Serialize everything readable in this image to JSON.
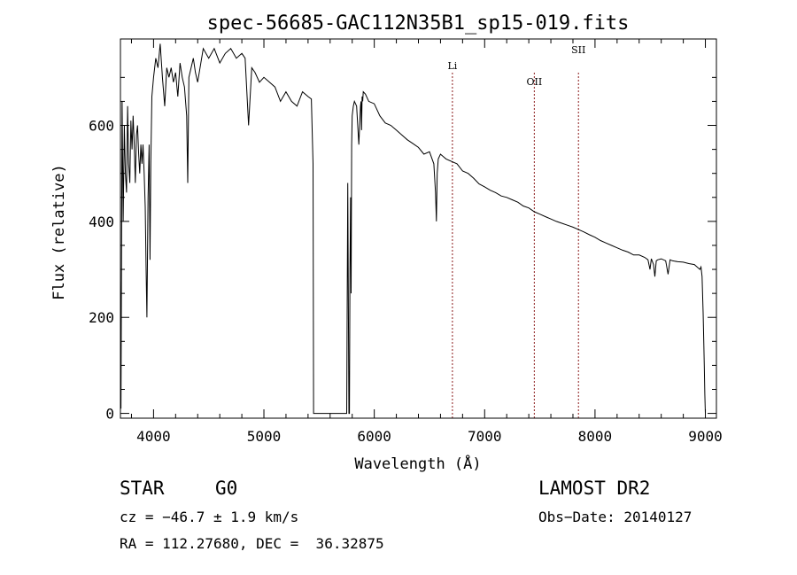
{
  "chart_data": {
    "type": "line",
    "title": "spec-56685-GAC112N35B1_sp15-019.fits",
    "xlabel": "Wavelength (Å)",
    "ylabel": "Flux (relative)",
    "xlim": [
      3700,
      9100
    ],
    "ylim": [
      -10,
      780
    ],
    "x_ticks": [
      4000,
      5000,
      6000,
      7000,
      8000,
      9000
    ],
    "x_tick_labels": [
      "4000",
      "5000",
      "6000",
      "7000",
      "8000",
      "9000"
    ],
    "y_ticks": [
      0,
      200,
      400,
      600
    ],
    "y_tick_labels": [
      "0",
      "200",
      "400",
      "600"
    ],
    "grid": false,
    "line_color": "#000000",
    "marker_color": "#8b1a1a",
    "lines": [
      {
        "label": "Li",
        "x": 6708
      },
      {
        "label": "OII",
        "x": 7450
      },
      {
        "label": "SII",
        "x": 7850
      }
    ],
    "series": [
      {
        "x": [
          3700,
          3705,
          3715,
          3725,
          3735,
          3745,
          3755,
          3765,
          3775,
          3785,
          3795,
          3805,
          3815,
          3825,
          3835,
          3845,
          3855,
          3865,
          3875,
          3885,
          3895,
          3905,
          3915,
          3925,
          3933,
          3940,
          3950,
          3960,
          3968,
          3975,
          3985,
          4000,
          4020,
          4040,
          4060,
          4080,
          4101,
          4120,
          4140,
          4160,
          4180,
          4200,
          4220,
          4240,
          4260,
          4280,
          4300,
          4310,
          4320,
          4340,
          4360,
          4380,
          4400,
          4450,
          4500,
          4550,
          4600,
          4650,
          4700,
          4750,
          4800,
          4830,
          4861,
          4890,
          4920,
          4960,
          5000,
          5050,
          5100,
          5150,
          5200,
          5250,
          5300,
          5350,
          5400,
          5430,
          5445,
          5450,
          5455,
          5500,
          5600,
          5700,
          5750,
          5760,
          5770,
          5775,
          5780,
          5785,
          5790,
          5795,
          5800,
          5810,
          5820,
          5840,
          5860,
          5875,
          5880,
          5885,
          5890,
          5895,
          5900,
          5920,
          5950,
          6000,
          6050,
          6100,
          6150,
          6200,
          6250,
          6300,
          6350,
          6400,
          6450,
          6500,
          6540,
          6555,
          6563,
          6570,
          6580,
          6600,
          6650,
          6700,
          6750,
          6800,
          6850,
          6900,
          6950,
          7000,
          7050,
          7100,
          7150,
          7200,
          7250,
          7300,
          7350,
          7400,
          7450,
          7500,
          7550,
          7600,
          7650,
          7700,
          7750,
          7800,
          7850,
          7900,
          7950,
          8000,
          8050,
          8100,
          8150,
          8200,
          8250,
          8300,
          8350,
          8400,
          8450,
          8480,
          8498,
          8510,
          8530,
          8542,
          8555,
          8570,
          8600,
          8640,
          8662,
          8680,
          8700,
          8750,
          8800,
          8850,
          8900,
          8950,
          8960,
          8970,
          8980,
          8990,
          8995,
          9000
        ],
        "values": [
          280,
          10,
          650,
          400,
          600,
          500,
          460,
          640,
          520,
          480,
          610,
          550,
          620,
          560,
          480,
          580,
          600,
          540,
          500,
          560,
          520,
          560,
          500,
          430,
          300,
          200,
          450,
          560,
          320,
          520,
          660,
          700,
          740,
          720,
          770,
          700,
          640,
          720,
          700,
          720,
          690,
          710,
          660,
          730,
          700,
          680,
          620,
          480,
          700,
          720,
          740,
          710,
          690,
          760,
          740,
          760,
          730,
          750,
          760,
          740,
          750,
          740,
          600,
          720,
          710,
          690,
          700,
          690,
          680,
          650,
          670,
          650,
          640,
          670,
          660,
          655,
          520,
          0,
          0,
          0,
          0,
          0,
          0,
          480,
          0,
          0,
          300,
          450,
          250,
          560,
          620,
          640,
          650,
          640,
          560,
          640,
          650,
          590,
          660,
          650,
          670,
          665,
          650,
          645,
          620,
          605,
          600,
          590,
          580,
          570,
          562,
          554,
          540,
          545,
          520,
          460,
          400,
          500,
          530,
          540,
          530,
          525,
          520,
          505,
          500,
          490,
          478,
          472,
          465,
          460,
          453,
          450,
          445,
          440,
          432,
          428,
          420,
          415,
          410,
          405,
          400,
          396,
          392,
          388,
          383,
          378,
          372,
          367,
          360,
          355,
          350,
          345,
          340,
          336,
          330,
          330,
          325,
          320,
          300,
          322,
          310,
          285,
          318,
          320,
          322,
          318,
          290,
          320,
          318,
          316,
          315,
          312,
          310,
          300,
          305,
          285,
          210,
          100,
          40,
          0
        ]
      }
    ]
  },
  "footer": {
    "object_type": "STAR",
    "subclass": "G0",
    "survey": "LAMOST DR2",
    "cz": "cz = −46.7 ± 1.9 km/s",
    "obs_date": "Obs−Date: 20140127",
    "coords": "RA = 112.27680, DEC =  36.32875"
  }
}
